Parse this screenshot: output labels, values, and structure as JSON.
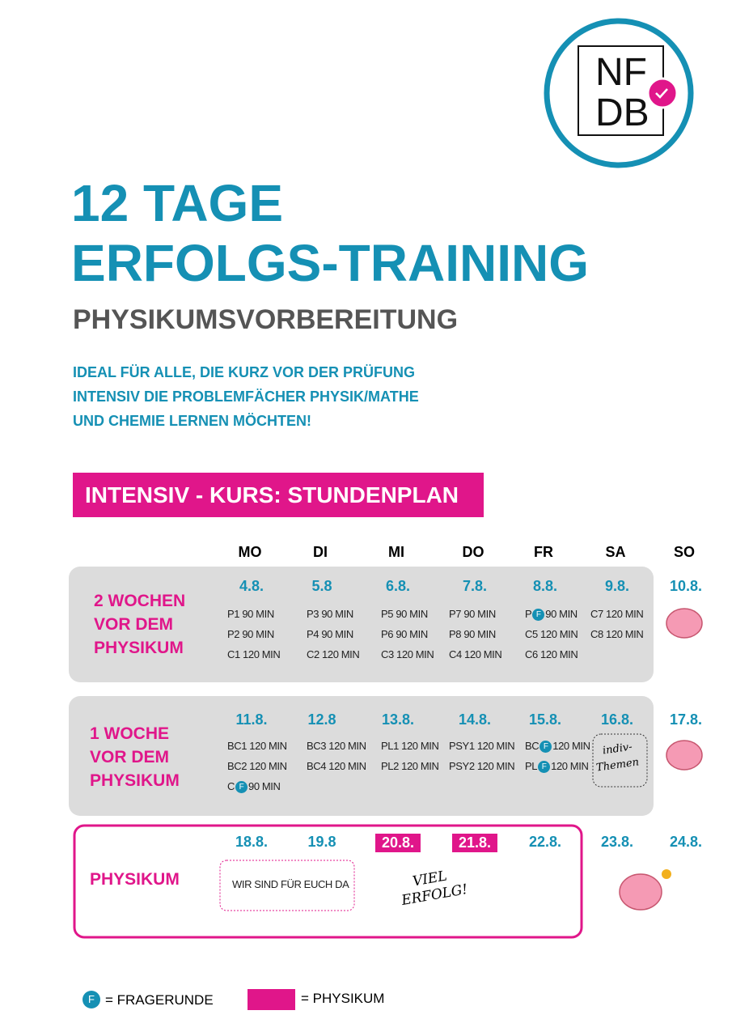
{
  "logo": {
    "line1": "NF",
    "line2": "DB"
  },
  "title": {
    "line1": "12 TAGE",
    "line2": "ERFOLGS-TRAINING"
  },
  "subtitle": "PHYSIKUMSVORBEREITUNG",
  "intro": [
    "IDEAL FÜR ALLE, DIE KURZ VOR DER PRÜFUNG",
    "INTENSIV DIE PROBLEMFÄCHER PHYSIK/MATHE",
    "UND CHEMIE LERNEN MÖCHTEN!"
  ],
  "section_title": "INTENSIV - KURS: STUNDENPLAN",
  "days": [
    "MO",
    "DI",
    "MI",
    "DO",
    "FR",
    "SA",
    "SO"
  ],
  "weeks": [
    {
      "label": [
        "2 WOCHEN",
        "VOR DEM",
        "PHYSIKUM"
      ],
      "dates": [
        "4.8.",
        "5.8",
        "6.8.",
        "7.8.",
        "8.8.",
        "9.8.",
        "10.8."
      ],
      "sessions": [
        [
          "P1 90 MIN",
          "P2 90 MIN",
          "C1 120 MIN"
        ],
        [
          "P3 90 MIN",
          "P4 90 MIN",
          "C2 120 MIN"
        ],
        [
          "P5 90 MIN",
          "P6 90 MIN",
          "C3 120 MIN"
        ],
        [
          "P7 90 MIN",
          "P8 90 MIN",
          "C4 120 MIN"
        ],
        [
          {
            "prefix": "P",
            "badge": "F",
            "suffix": "90 MIN"
          },
          "C5 120 MIN",
          "C6 120 MIN"
        ],
        [
          "C7 120 MIN",
          "C8 120 MIN"
        ],
        []
      ]
    },
    {
      "label": [
        "1 WOCHE",
        "VOR DEM",
        "PHYSIKUM"
      ],
      "dates": [
        "11.8.",
        "12.8",
        "13.8.",
        "14.8.",
        "15.8.",
        "16.8.",
        "17.8."
      ],
      "sessions": [
        [
          "BC1 120 MIN",
          "BC2 120 MIN",
          {
            "prefix": "C",
            "badge": "F",
            "suffix": "90 MIN"
          }
        ],
        [
          "BC3 120 MIN",
          "BC4 120 MIN"
        ],
        [
          "PL1 120 MIN",
          "PL2 120 MIN"
        ],
        [
          "PSY1 120 MIN",
          "PSY2 120 MIN"
        ],
        [
          {
            "prefix": "BC",
            "badge": "F",
            "suffix": "120 MIN"
          },
          {
            "prefix": "PL",
            "badge": "F",
            "suffix": "120 MIN"
          }
        ],
        [],
        []
      ],
      "handwritten": [
        "indiv-",
        "Themen"
      ]
    },
    {
      "label": [
        "PHYSIKUM"
      ],
      "dates": [
        "18.8.",
        "19.8",
        "20.8.",
        "21.8.",
        "22.8.",
        "23.8.",
        "24.8."
      ],
      "highlight": [
        false,
        false,
        true,
        true,
        false,
        false,
        false
      ],
      "note": "WIR SIND  FÜR EUCH DA",
      "handwritten": [
        "VIEL",
        "ERFOLG!"
      ]
    }
  ],
  "legend": {
    "badge": "F",
    "badge_text": "= FRAGERUNDE",
    "physikum_text": "= PHYSIKUM"
  }
}
